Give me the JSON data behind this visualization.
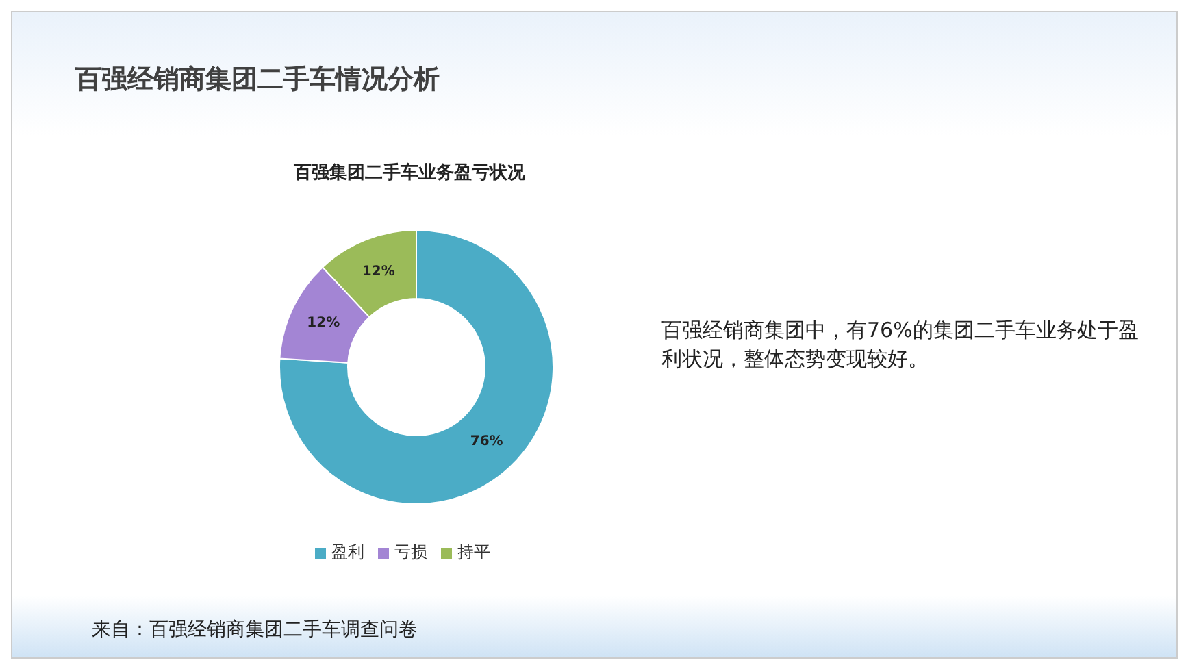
{
  "chart_data": {
    "type": "donut",
    "title": "百强经销商集团二手车情况分析",
    "subtitle": "百强集团二手车业务盈亏状况",
    "categories": [
      "盈利",
      "亏损",
      "持平"
    ],
    "values": [
      76,
      12,
      12
    ],
    "colors": [
      "#4bacc6",
      "#a385d4",
      "#9bbb59"
    ],
    "value_labels": [
      "76%",
      "12%",
      "12%"
    ],
    "legend": "bottom",
    "annotations": [
      "百强经销商集团中，有76%的集团二手车业务处于盈利状况，整体态势变现较好。",
      "来自：百强经销商集团二手车调查问卷"
    ]
  }
}
